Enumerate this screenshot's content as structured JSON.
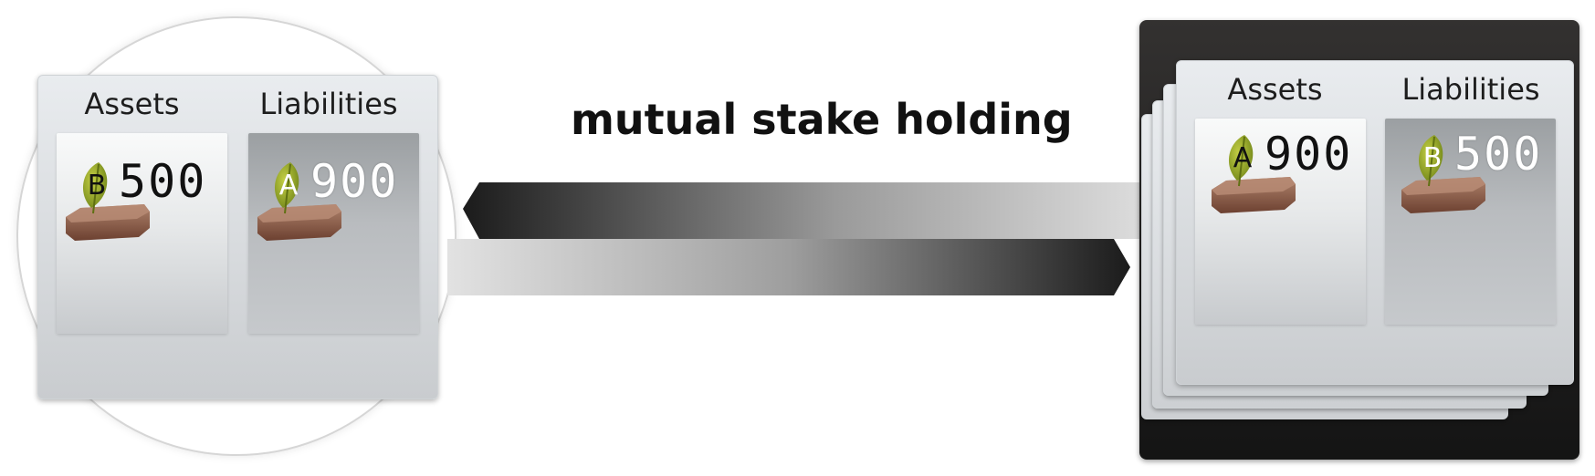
{
  "caption": "mutual stake holding",
  "left_sheet": {
    "assets_title": "Assets",
    "liabilities_title": "Liabilities",
    "assets_token": {
      "letter": "B",
      "amount": "500"
    },
    "liabilities_token": {
      "letter": "A",
      "amount": "900"
    }
  },
  "right_sheet": {
    "assets_title": "Assets",
    "liabilities_title": "Liabilities",
    "assets_token": {
      "letter": "A",
      "amount": "900"
    },
    "liabilities_token": {
      "letter": "B",
      "amount": "500"
    }
  },
  "icons": {
    "token": "leaf-on-wooden-block-icon",
    "arrow_left": "gradient-arrow-left",
    "arrow_right": "gradient-arrow-right"
  },
  "colors": {
    "arrow_dark": "#1b1b1b",
    "arrow_light": "#d8d8d8",
    "frame": "#222222",
    "leaf": "#9aab2a",
    "wood": "#8a5a44"
  }
}
